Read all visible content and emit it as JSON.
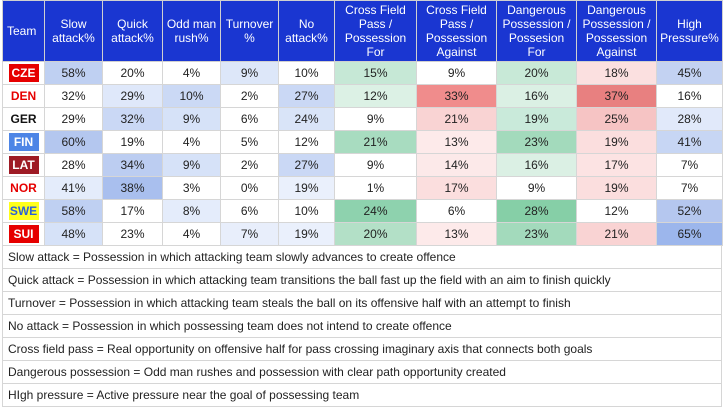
{
  "headers": [
    "Team",
    "Slow\nattack%",
    "Quick\nattack%",
    "Odd man\nrush%",
    "Turnover\n%",
    "No\nattack%",
    "Cross Field\nPass /\nPossession\nFor",
    "Cross Field\nPass /\nPossession\nAgainst",
    "Dangerous\nPossession /\nPossesion\nFor",
    "Dangerous\nPossession /\nPossession\nAgainst",
    "High\nPressure%"
  ],
  "rows": [
    {
      "team": "CZE",
      "team_bg": "#e60000",
      "team_fg": "#ffffff",
      "cells": [
        "58%",
        "20%",
        "4%",
        "9%",
        "10%",
        "15%",
        "9%",
        "20%",
        "18%",
        "45%"
      ],
      "bgs": [
        "#bfd0f2",
        "#ffffff",
        "#ffffff",
        "#dde7f9",
        "#ffffff",
        "#c6e8d6",
        "#ffffff",
        "#c8e9d7",
        "#fbe0e0",
        "#c3d2f2"
      ]
    },
    {
      "team": "DEN",
      "team_bg": "#ffffff",
      "team_fg": "#e60000",
      "cells": [
        "32%",
        "29%",
        "10%",
        "2%",
        "27%",
        "12%",
        "33%",
        "16%",
        "37%",
        "16%"
      ],
      "bgs": [
        "#ffffff",
        "#dfe8fa",
        "#cbd9f5",
        "#ffffff",
        "#cad8f5",
        "#dcf1e5",
        "#f08c8c",
        "#dbf0e4",
        "#e88080",
        "#ffffff"
      ]
    },
    {
      "team": "GER",
      "team_bg": "#ffffff",
      "team_fg": "#111111",
      "cells": [
        "29%",
        "32%",
        "9%",
        "6%",
        "24%",
        "9%",
        "21%",
        "19%",
        "25%",
        "28%"
      ],
      "bgs": [
        "#ffffff",
        "#cad8f5",
        "#d6e2f8",
        "#ffffff",
        "#d9e4f8",
        "#ffffff",
        "#f9d3d3",
        "#c9eada",
        "#f6c4c4",
        "#e1e9fa"
      ]
    },
    {
      "team": "FIN",
      "team_bg": "#4d85e6",
      "team_fg": "#ffffff",
      "cells": [
        "60%",
        "19%",
        "4%",
        "5%",
        "12%",
        "21%",
        "13%",
        "23%",
        "19%",
        "41%"
      ],
      "bgs": [
        "#b4c7ef",
        "#ffffff",
        "#ffffff",
        "#ffffff",
        "#ffffff",
        "#a8dcc0",
        "#fdeaea",
        "#a3dabc",
        "#fbdede",
        "#c7d6f4"
      ]
    },
    {
      "team": "LAT",
      "team_bg": "#9e1b25",
      "team_fg": "#ffffff",
      "cells": [
        "28%",
        "34%",
        "9%",
        "2%",
        "27%",
        "9%",
        "14%",
        "16%",
        "17%",
        "7%"
      ],
      "bgs": [
        "#ffffff",
        "#bccdf1",
        "#d6e2f8",
        "#ffffff",
        "#cad8f5",
        "#ffffff",
        "#fce9e9",
        "#dbf0e4",
        "#fce3e3",
        "#ffffff"
      ]
    },
    {
      "team": "NOR",
      "team_bg": "#ffffff",
      "team_fg": "#e60000",
      "cells": [
        "41%",
        "38%",
        "3%",
        "0%",
        "19%",
        "1%",
        "17%",
        "9%",
        "19%",
        "7%"
      ],
      "bgs": [
        "#e4ecfb",
        "#a9bfee",
        "#ffffff",
        "#ffffff",
        "#eaf0fc",
        "#ffffff",
        "#fbdede",
        "#ffffff",
        "#fbdede",
        "#ffffff"
      ]
    },
    {
      "team": "SWE",
      "team_bg": "#ffff1a",
      "team_fg": "#2b5fd9",
      "cells": [
        "58%",
        "17%",
        "8%",
        "6%",
        "10%",
        "24%",
        "6%",
        "28%",
        "12%",
        "52%"
      ],
      "bgs": [
        "#bfd0f2",
        "#ffffff",
        "#e4ecfb",
        "#ffffff",
        "#ffffff",
        "#8ed2ae",
        "#ffffff",
        "#86cfa7",
        "#ffffff",
        "#b5c7ef"
      ]
    },
    {
      "team": "SUI",
      "team_bg": "#e60000",
      "team_fg": "#ffffff",
      "cells": [
        "48%",
        "23%",
        "4%",
        "7%",
        "19%",
        "20%",
        "13%",
        "23%",
        "21%",
        "65%"
      ],
      "bgs": [
        "#d6e2f8",
        "#ffffff",
        "#ffffff",
        "#e8eefb",
        "#eaf0fc",
        "#b3e0c7",
        "#fdeaea",
        "#a3dabc",
        "#f9d3d3",
        "#9cb6ec"
      ]
    }
  ],
  "notes": [
    "Slow attack = Possession in which attacking team slowly advances to create offence",
    "Quick attack = Possession in which attacking team transitions the ball fast up the field with an aim to finish quickly",
    "Turnover = Possession in which attacking team steals the ball on its offensive half with an attempt to finish",
    "No attack = Possession in which possessing team does not intend to create offence",
    "Cross field pass = Real opportunity on offensive half for pass crossing imaginary axis that connects both goals",
    "Dangerous possession = Odd man rushes and possession with clear path opportunity created",
    "HIgh pressure = Active pressure near the goal of possessing team"
  ]
}
